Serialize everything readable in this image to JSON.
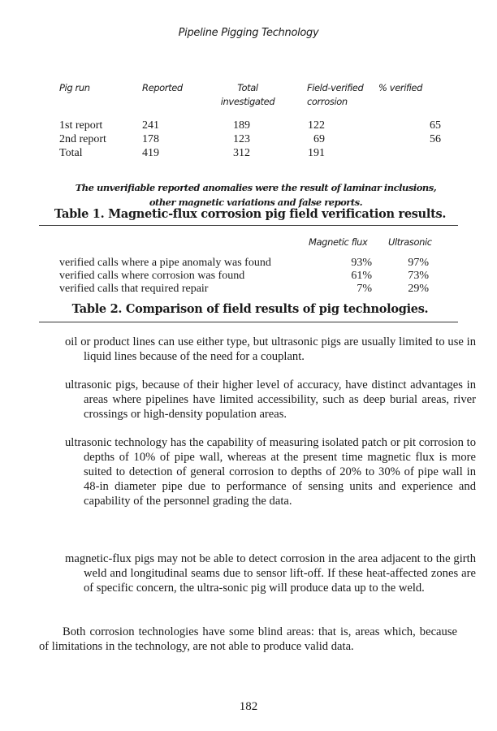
{
  "running_header": "Pipeline Pigging Technology",
  "table1": {
    "headers": [
      "Pig run",
      "Reported",
      "Total investigated",
      "Field-verified corrosion",
      "% verified"
    ],
    "rows": [
      [
        "1st report",
        "241",
        "189",
        "122",
        "65"
      ],
      [
        "2nd report",
        "178",
        "123",
        "69",
        "56"
      ],
      [
        "Total",
        "419",
        "312",
        "191",
        ""
      ]
    ],
    "note_line1": "The unverifiable reported anomalies were the result of laminar inclusions,",
    "note_line2": "other magnetic variations and false reports.",
    "title": "Table 1. Magnetic-flux corrosion pig field verification results."
  },
  "table2": {
    "headers": [
      "Magnetic flux",
      "Ultrasonic"
    ],
    "rows": [
      [
        "verified calls where a pipe anomaly was found",
        "93%",
        "97%"
      ],
      [
        "verified calls where corrosion was found",
        "61%",
        "73%"
      ],
      [
        "verified calls that required repair",
        "7%",
        "29%"
      ]
    ],
    "title": "Table 2. Comparison of field results of pig technologies."
  },
  "paragraphs": [
    "oil or product lines can use either type, but ultrasonic pigs are usually limited to use in liquid lines because of the need for a couplant.",
    "ultrasonic pigs, because of their higher level of accuracy, have distinct advantages in areas where pipelines have limited accessibility, such as deep burial areas, river crossings or high-density population areas.",
    "ultrasonic technology has the capability of measuring isolated patch or pit corrosion to depths of 10% of pipe wall, whereas at the present time magnetic flux is more suited to detection of general corrosion to depths of 20% to 30% of pipe wall in 48-in diameter pipe due to performance of sensing units and experience and capability of the personnel grading the data.",
    "magnetic-flux pigs may not be able to detect corrosion in the area adjacent to the girth weld and longitudinal seams due to sensor lift-off. If these heat-affected zones are of specific concern, the ultra-sonic pig will produce data up to the weld.",
    "Both corrosion technologies have some blind areas: that is, areas which, because of limitations in the technology, are not able to produce valid data."
  ],
  "page_number": "182"
}
